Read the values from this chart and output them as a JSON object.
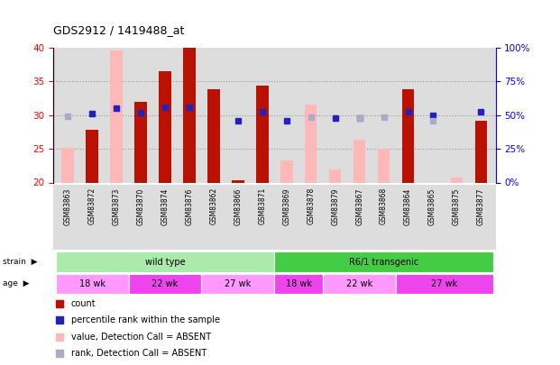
{
  "title": "GDS2912 / 1419488_at",
  "samples": [
    "GSM83863",
    "GSM83872",
    "GSM83873",
    "GSM83870",
    "GSM83874",
    "GSM83876",
    "GSM83862",
    "GSM83866",
    "GSM83871",
    "GSM83869",
    "GSM83878",
    "GSM83879",
    "GSM83867",
    "GSM83868",
    "GSM83864",
    "GSM83865",
    "GSM83875",
    "GSM83877"
  ],
  "red_values": [
    null,
    27.8,
    null,
    32.0,
    36.5,
    39.9,
    33.8,
    20.3,
    34.3,
    null,
    null,
    null,
    null,
    null,
    33.8,
    null,
    null,
    29.1
  ],
  "pink_values": [
    25.2,
    null,
    39.5,
    null,
    null,
    null,
    null,
    null,
    null,
    23.3,
    31.5,
    22.0,
    26.3,
    25.0,
    null,
    null,
    20.8,
    null
  ],
  "blue_squares": [
    null,
    30.2,
    31.0,
    30.3,
    31.1,
    31.1,
    null,
    29.1,
    30.5,
    29.2,
    null,
    29.5,
    29.5,
    null,
    30.5,
    30.0,
    null,
    30.5
  ],
  "lavender_squares": [
    29.8,
    null,
    null,
    null,
    null,
    null,
    null,
    null,
    null,
    null,
    29.7,
    null,
    29.5,
    29.7,
    null,
    29.1,
    null,
    null
  ],
  "ylim_left": [
    20,
    40
  ],
  "ylim_right": [
    0,
    100
  ],
  "yticks_left": [
    20,
    25,
    30,
    35,
    40
  ],
  "ytick_labels_right": [
    "0%",
    "25%",
    "50%",
    "75%",
    "100%"
  ],
  "strain_groups": [
    {
      "label": "wild type",
      "start": 0,
      "end": 8,
      "color": "#AAEAAA"
    },
    {
      "label": "R6/1 transgenic",
      "start": 9,
      "end": 17,
      "color": "#44CC44"
    }
  ],
  "age_groups": [
    {
      "label": "18 wk",
      "start": 0,
      "end": 2,
      "color": "#FF99FF"
    },
    {
      "label": "22 wk",
      "start": 3,
      "end": 5,
      "color": "#EE44EE"
    },
    {
      "label": "27 wk",
      "start": 6,
      "end": 8,
      "color": "#FF99FF"
    },
    {
      "label": "18 wk",
      "start": 9,
      "end": 10,
      "color": "#EE44EE"
    },
    {
      "label": "22 wk",
      "start": 11,
      "end": 13,
      "color": "#FF99FF"
    },
    {
      "label": "27 wk",
      "start": 14,
      "end": 17,
      "color": "#EE44EE"
    }
  ],
  "bar_width": 0.5,
  "red_color": "#BB1100",
  "pink_color": "#FFB8B8",
  "blue_color": "#2222BB",
  "lavender_color": "#AAAACC",
  "grid_color": "#999999",
  "bg_color": "#DDDDDD",
  "legend_items": [
    {
      "color": "#BB1100",
      "label": "count"
    },
    {
      "color": "#2222BB",
      "label": "percentile rank within the sample"
    },
    {
      "color": "#FFB8B8",
      "label": "value, Detection Call = ABSENT"
    },
    {
      "color": "#AAAACC",
      "label": "rank, Detection Call = ABSENT"
    }
  ]
}
